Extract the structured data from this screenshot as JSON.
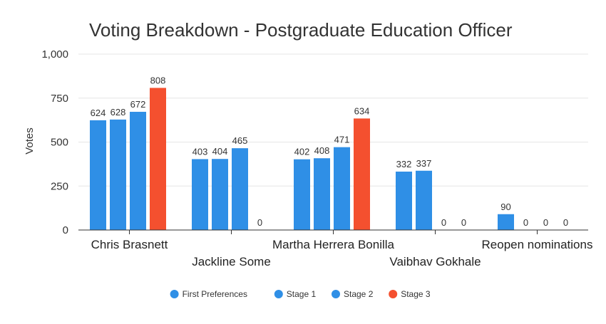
{
  "chart_data": {
    "type": "bar",
    "title": "Voting Breakdown - Postgraduate Education Officer",
    "xlabel": "",
    "ylabel": "Votes",
    "ylim": [
      0,
      1000
    ],
    "yticks": [
      0,
      250,
      500,
      750,
      1000
    ],
    "ytick_labels": [
      "0",
      "250",
      "500",
      "750",
      "1,000"
    ],
    "categories": [
      "Chris Brasnett",
      "Jackline Some",
      "Martha Herrera Bonilla",
      "Vaibhav Gokhale",
      "Reopen nominations"
    ],
    "series": [
      {
        "name": "First Preferences",
        "color": "#2f8fe6",
        "values": [
          624,
          403,
          402,
          332,
          90
        ]
      },
      {
        "name": "Stage 1",
        "color": "#2f8fe6",
        "values": [
          628,
          404,
          408,
          337,
          0
        ]
      },
      {
        "name": "Stage 2",
        "color": "#2f8fe6",
        "values": [
          672,
          465,
          471,
          0,
          0
        ]
      },
      {
        "name": "Stage 3",
        "color": "#f4502f",
        "values": [
          808,
          0,
          634,
          0,
          0
        ]
      }
    ],
    "grid": true,
    "legend": "bottom"
  }
}
